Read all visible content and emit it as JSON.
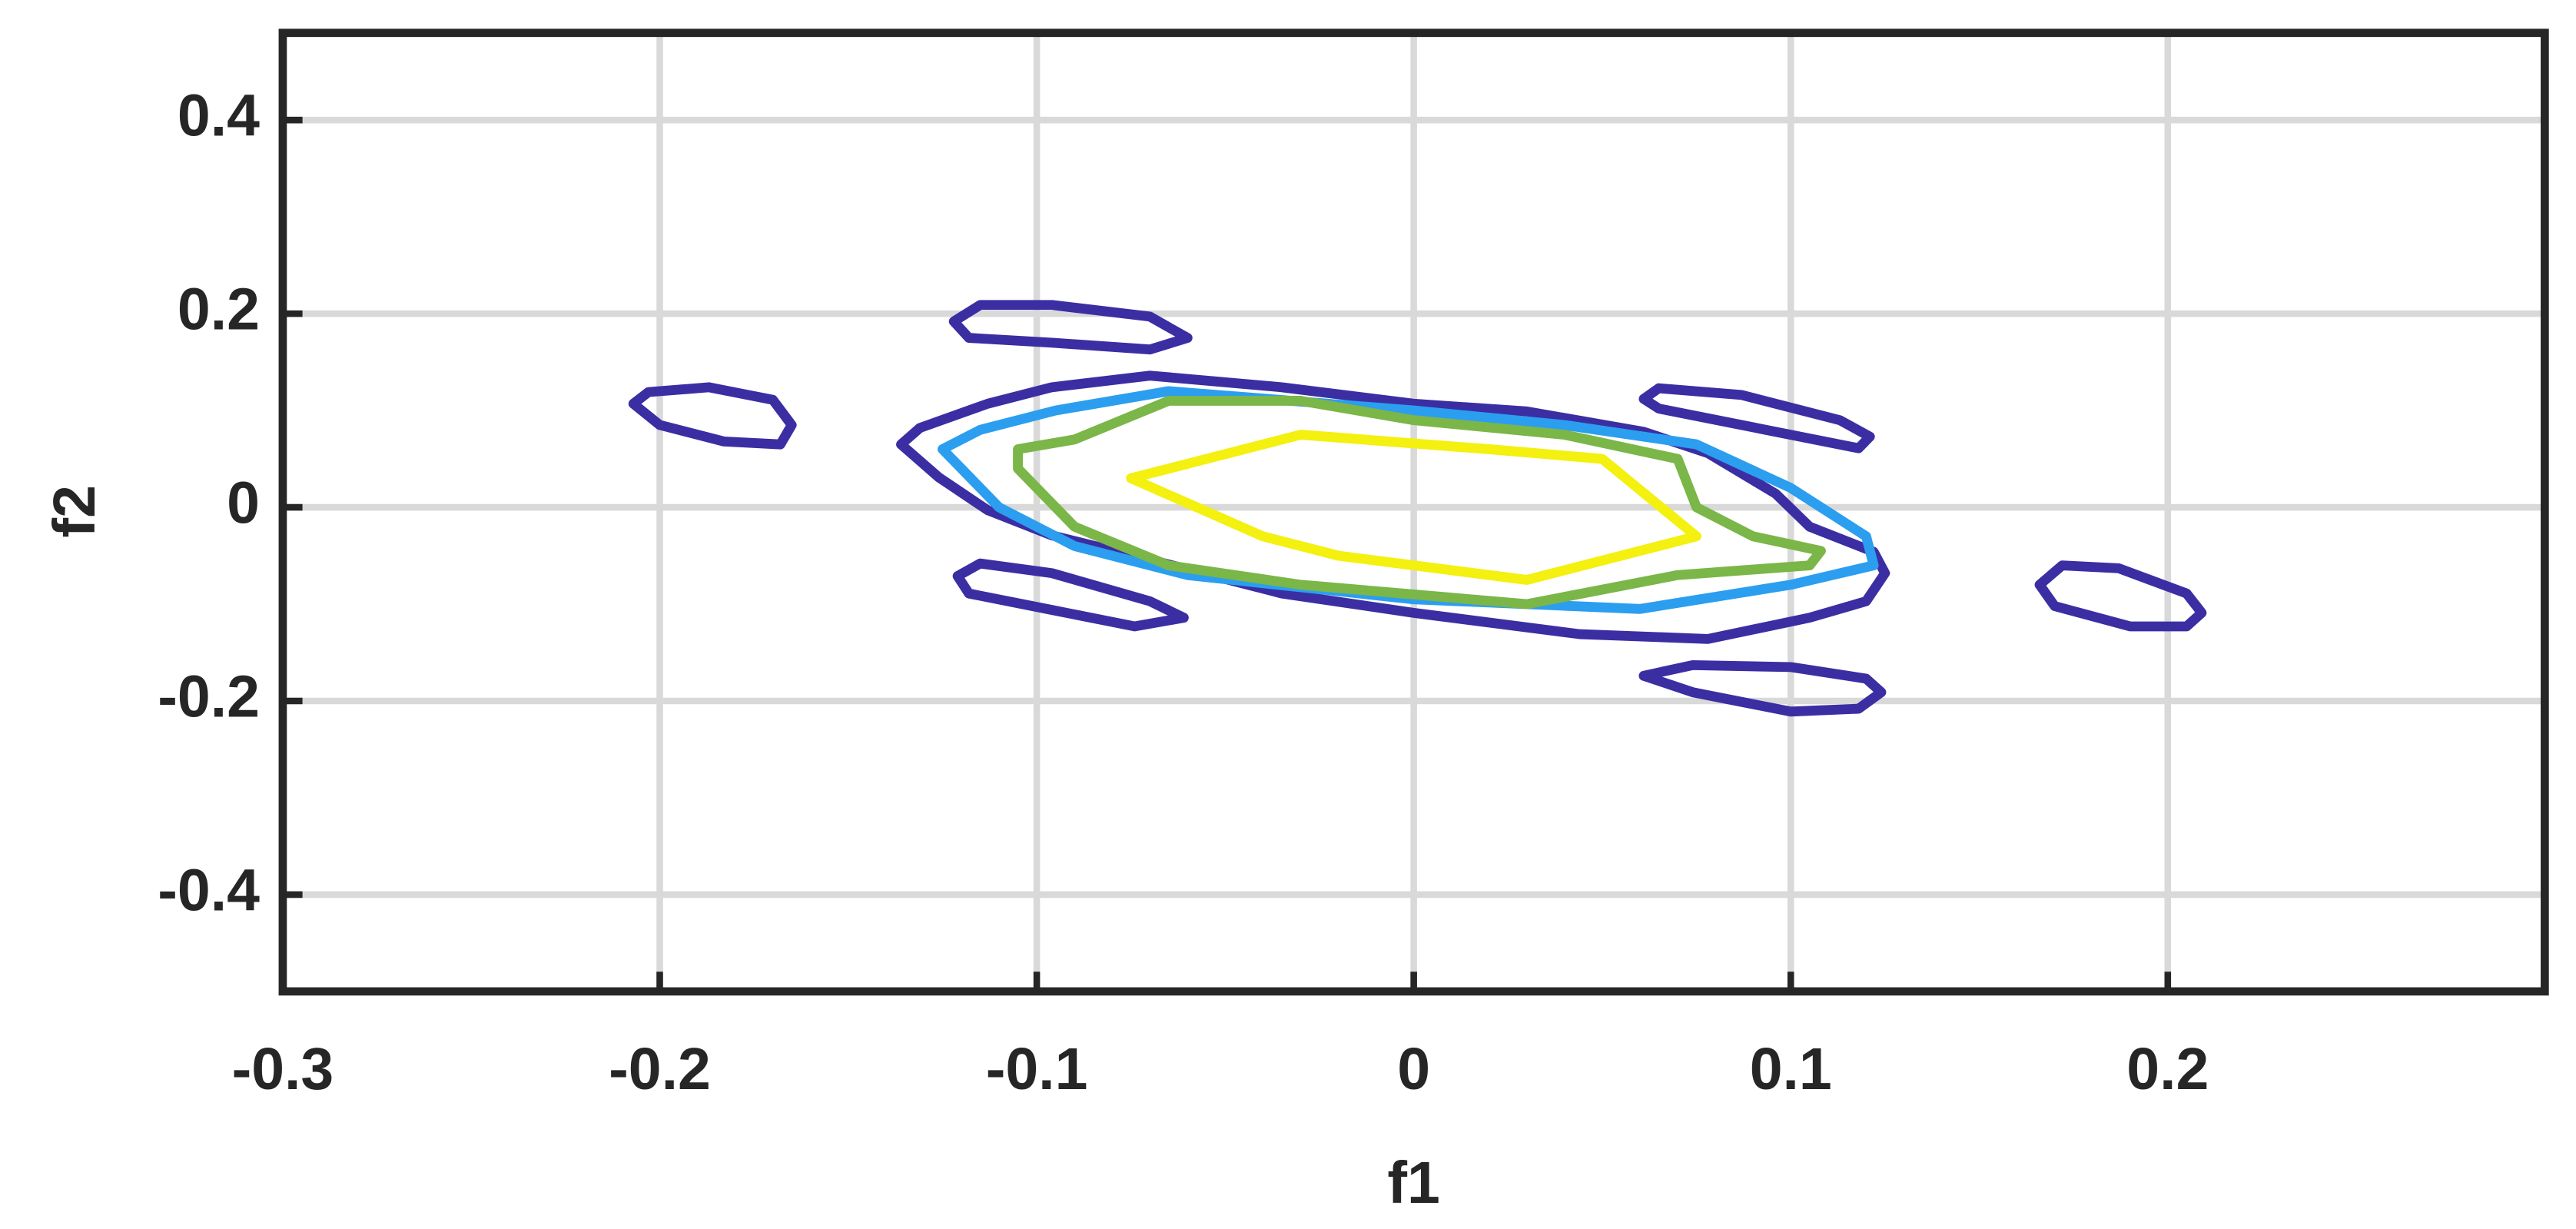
{
  "chart_data": {
    "type": "contour",
    "xlabel": "f1",
    "ylabel": "f2",
    "xlim": [
      -0.3,
      0.3
    ],
    "ylim": [
      -0.5,
      0.49
    ],
    "xticks": [
      -0.3,
      -0.2,
      -0.1,
      0,
      0.1,
      0.2
    ],
    "yticks": [
      -0.4,
      -0.2,
      0,
      0.2,
      0.4
    ],
    "grid": true,
    "contours": [
      {
        "color": "#3b2ea3",
        "x": [
          -0.207,
          -0.203,
          -0.187,
          -0.17,
          -0.165,
          -0.168,
          -0.183,
          -0.2
        ],
        "y": [
          0.107,
          0.119,
          0.124,
          0.111,
          0.085,
          0.065,
          0.068,
          0.085
        ]
      },
      {
        "color": "#3b2ea3",
        "x": [
          -0.122,
          -0.115,
          -0.096,
          -0.07,
          -0.06,
          -0.07,
          -0.096,
          -0.118
        ],
        "y": [
          0.192,
          0.209,
          0.209,
          0.197,
          0.175,
          0.163,
          0.17,
          0.175
        ]
      },
      {
        "color": "#3b2ea3",
        "x": [
          -0.121,
          -0.115,
          -0.096,
          -0.07,
          -0.061,
          -0.074,
          -0.096,
          -0.118
        ],
        "y": [
          -0.071,
          -0.058,
          -0.068,
          -0.097,
          -0.114,
          -0.123,
          -0.106,
          -0.089
        ]
      },
      {
        "color": "#3b2ea3",
        "x": [
          0.061,
          0.065,
          0.087,
          0.113,
          0.121,
          0.118,
          0.096,
          0.065
        ],
        "y": [
          0.112,
          0.123,
          0.116,
          0.09,
          0.073,
          0.061,
          0.078,
          0.102
        ]
      },
      {
        "color": "#3b2ea3",
        "x": [
          0.061,
          0.074,
          0.1,
          0.12,
          0.124,
          0.118,
          0.1,
          0.074
        ],
        "y": [
          -0.174,
          -0.163,
          -0.165,
          -0.177,
          -0.191,
          -0.208,
          -0.211,
          -0.191
        ]
      },
      {
        "color": "#3b2ea3",
        "x": [
          0.166,
          0.172,
          0.187,
          0.205,
          0.209,
          0.205,
          0.19,
          0.17
        ],
        "y": [
          -0.08,
          -0.06,
          -0.063,
          -0.089,
          -0.109,
          -0.123,
          -0.123,
          -0.102
        ]
      },
      {
        "color": "#3b2ea3",
        "x": [
          -0.136,
          -0.131,
          -0.113,
          -0.096,
          -0.07,
          -0.035,
          0,
          0.03,
          0.061,
          0.078,
          0.096,
          0.105,
          0.122,
          0.125,
          0.12,
          0.105,
          0.078,
          0.044,
          0,
          -0.035,
          -0.07,
          -0.096,
          -0.113,
          -0.126
        ],
        "y": [
          0.065,
          0.082,
          0.107,
          0.124,
          0.136,
          0.124,
          0.107,
          0.099,
          0.078,
          0.056,
          0.014,
          -0.02,
          -0.046,
          -0.068,
          -0.097,
          -0.114,
          -0.136,
          -0.131,
          -0.109,
          -0.089,
          -0.054,
          -0.029,
          -0.003,
          0.031
        ]
      },
      {
        "color": "#2b9ef0",
        "x": [
          -0.125,
          -0.115,
          -0.095,
          -0.065,
          0,
          0.04,
          0.075,
          0.1,
          0.12,
          0.122,
          0.1,
          0.06,
          0,
          -0.06,
          -0.09,
          -0.11,
          -0.12
        ],
        "y": [
          0.06,
          0.08,
          0.1,
          0.12,
          0.1,
          0.085,
          0.065,
          0.02,
          -0.03,
          -0.06,
          -0.08,
          -0.105,
          -0.095,
          -0.07,
          -0.04,
          0,
          0.04
        ]
      },
      {
        "color": "#7ab648",
        "x": [
          -0.105,
          -0.09,
          -0.065,
          -0.03,
          0,
          0.04,
          0.07,
          0.075,
          0.09,
          0.108,
          0.105,
          0.07,
          0.03,
          -0.03,
          -0.065,
          -0.09,
          -0.105
        ],
        "y": [
          0.06,
          0.07,
          0.11,
          0.11,
          0.09,
          0.075,
          0.05,
          0,
          -0.03,
          -0.045,
          -0.06,
          -0.07,
          -0.1,
          -0.08,
          -0.06,
          -0.02,
          0.04
        ]
      },
      {
        "color": "#f4f00f",
        "x": [
          -0.075,
          -0.03,
          0.02,
          0.05,
          0.075,
          0.03,
          -0.02,
          -0.04
        ],
        "y": [
          0.03,
          0.075,
          0.06,
          0.05,
          -0.03,
          -0.075,
          -0.05,
          -0.03
        ]
      }
    ]
  }
}
